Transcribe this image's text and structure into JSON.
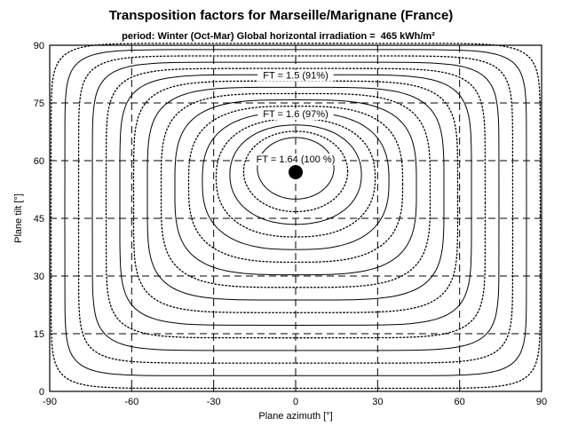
{
  "chart_data": {
    "type": "contour",
    "title": "Transposition factors for Marseille/Marignane (France)",
    "subtitle": {
      "period": "period: Winter (Oct-Mar) Global horizontal irradiation =",
      "value": "465 kWh/m²"
    },
    "xlabel": "Plane azimuth [°]",
    "ylabel": "Plane tilt [°]",
    "xlim": [
      -90,
      90
    ],
    "ylim": [
      0,
      90
    ],
    "x_ticks": [
      -90,
      -60,
      -30,
      0,
      30,
      60,
      90
    ],
    "y_ticks": [
      0,
      15,
      30,
      45,
      60,
      75,
      90
    ],
    "grid": true,
    "optimum": {
      "azimuth": 0,
      "tilt": 57,
      "label": "FT = 1.64 (100 %)"
    },
    "contours": [
      {
        "label": "FT = 1.6 (97%)",
        "tilt_top": 75,
        "tilt_bottom": 35,
        "half_width": 45,
        "style": "solid"
      },
      {
        "label": "FT = 1.5 (91%)",
        "tilt_top": 84.3,
        "tilt_bottom": 17,
        "half_width": 78,
        "style": "solid"
      }
    ],
    "annotations": [
      "FT = 1.5 (91%)",
      "FT = 1.6 (97%)",
      "FT = 1.64 (100 %)"
    ]
  }
}
